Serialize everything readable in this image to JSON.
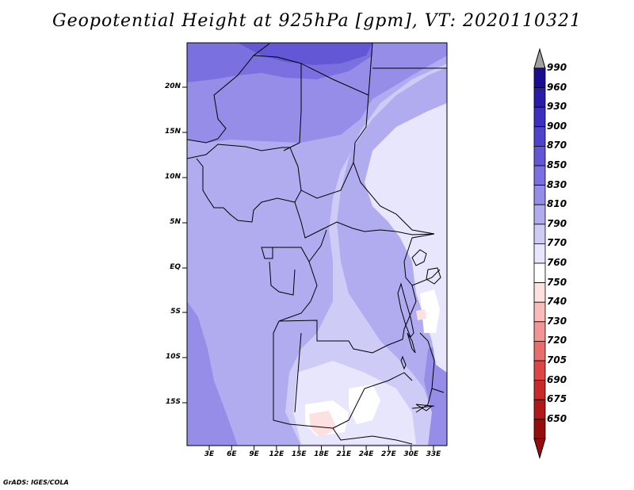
{
  "title": "Geopotential Height at 925hPa [gpm], VT: 2020110321",
  "credit": "GrADS: IGES/COLA",
  "map": {
    "lat_labels": [
      "20N",
      "15N",
      "10N",
      "5N",
      "EQ",
      "5S",
      "10S",
      "15S"
    ],
    "lon_labels": [
      "3E",
      "6E",
      "9E",
      "12E",
      "15E",
      "18E",
      "21E",
      "24E",
      "27E",
      "30E",
      "33E"
    ]
  },
  "colorbar": {
    "levels": [
      "990",
      "960",
      "930",
      "900",
      "870",
      "850",
      "830",
      "810",
      "790",
      "770",
      "760",
      "750",
      "740",
      "730",
      "720",
      "705",
      "690",
      "675",
      "650"
    ],
    "colors": [
      "#1a0d8f",
      "#2a1ba8",
      "#3d2fbf",
      "#4f43cc",
      "#6357d6",
      "#7a70e0",
      "#958de8",
      "#b1abf0",
      "#cfcbf7",
      "#e8e6fc",
      "#ffffff",
      "#fde0e0",
      "#f9baba",
      "#f29494",
      "#e96d6d",
      "#dc4646",
      "#c82a2a",
      "#b01818",
      "#950d0d"
    ],
    "over_color": "#a0a0a0"
  }
}
